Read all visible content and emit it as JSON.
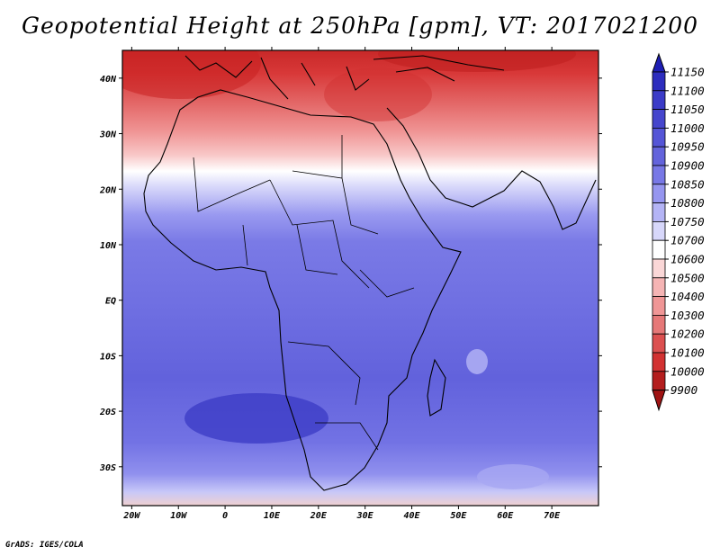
{
  "title": "Geopotential Height at 250hPa [gpm], VT: 2017021200",
  "credit": "GrADS: IGES/COLA",
  "map": {
    "lon_range": [
      -22,
      80
    ],
    "lat_range": [
      -37,
      45
    ],
    "lon_ticks": [
      {
        "value": -20,
        "label": "20W"
      },
      {
        "value": -10,
        "label": "10W"
      },
      {
        "value": 0,
        "label": "0"
      },
      {
        "value": 10,
        "label": "10E"
      },
      {
        "value": 20,
        "label": "20E"
      },
      {
        "value": 30,
        "label": "30E"
      },
      {
        "value": 40,
        "label": "40E"
      },
      {
        "value": 50,
        "label": "50E"
      },
      {
        "value": 60,
        "label": "60E"
      },
      {
        "value": 70,
        "label": "70E"
      }
    ],
    "lat_ticks": [
      {
        "value": 40,
        "label": "40N"
      },
      {
        "value": 30,
        "label": "30N"
      },
      {
        "value": 20,
        "label": "20N"
      },
      {
        "value": 10,
        "label": "10N"
      },
      {
        "value": 0,
        "label": "EQ"
      },
      {
        "value": -10,
        "label": "10S"
      },
      {
        "value": -20,
        "label": "20S"
      },
      {
        "value": -30,
        "label": "30S"
      }
    ]
  },
  "colorbar": {
    "labels": [
      "11150",
      "11100",
      "11050",
      "11000",
      "10950",
      "10900",
      "10850",
      "10800",
      "10750",
      "10700",
      "10600",
      "10500",
      "10400",
      "10300",
      "10200",
      "10100",
      "10000",
      "9900"
    ],
    "colors": [
      "#1e1eb4",
      "#2d2dbe",
      "#3c3cc8",
      "#4646cd",
      "#5555d7",
      "#6464dc",
      "#7878e6",
      "#9696f0",
      "#b4b4f5",
      "#d7d7fa",
      "#ffffff",
      "#fad7d7",
      "#f5b4b4",
      "#f09696",
      "#e67878",
      "#dc5050",
      "#d23232",
      "#b41e1e",
      "#a01414"
    ]
  }
}
